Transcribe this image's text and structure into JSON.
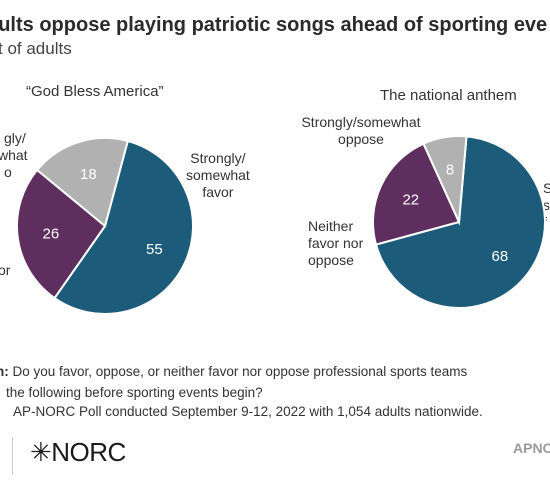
{
  "title": "dults oppose playing patriotic songs ahead of sporting eve",
  "subtitle": "t of adults",
  "charts": [
    {
      "title": "“God Bless America”",
      "labels": {
        "favor": [
          "Strongly/",
          "somewhat",
          "favor"
        ],
        "oppose": [
          "gly/",
          "what",
          "o"
        ],
        "neither": [
          "or"
        ]
      }
    },
    {
      "title": "The national anthem",
      "labels": {
        "favor": [
          "S",
          "s",
          "f"
        ],
        "oppose": [
          "Strongly/somewhat",
          "oppose"
        ],
        "neither": [
          "Neither",
          "favor nor",
          "oppose"
        ]
      }
    }
  ],
  "chart_data": [
    {
      "type": "pie",
      "title": "“God Bless America”",
      "slices": [
        {
          "label": "Strongly/somewhat favor",
          "value": 55,
          "color": "#1d5b7a"
        },
        {
          "label": "Neither favor nor oppose",
          "value": 26,
          "color": "#5e2e5f"
        },
        {
          "label": "Strongly/somewhat oppose",
          "value": 18,
          "color": "#b1b1b1"
        }
      ]
    },
    {
      "type": "pie",
      "title": "The national anthem",
      "slices": [
        {
          "label": "Strongly/somewhat favor",
          "value": 68,
          "color": "#1d5b7a"
        },
        {
          "label": "Neither favor nor oppose",
          "value": 22,
          "color": "#5e2e5f"
        },
        {
          "label": "Strongly/somewhat oppose",
          "value": 8,
          "color": "#b1b1b1"
        }
      ]
    }
  ],
  "notes": {
    "question_prefix": "n:",
    "question_line1": " Do you favor, oppose, or neither favor nor oppose professional sports teams",
    "question_line2": "the following before sporting events begin?",
    "source": "AP-NORC Poll conducted September 9-12, 2022 with 1,054 adults nationwide."
  },
  "footer": {
    "logo_left": "✳NORC",
    "logo_right": "APNO"
  }
}
